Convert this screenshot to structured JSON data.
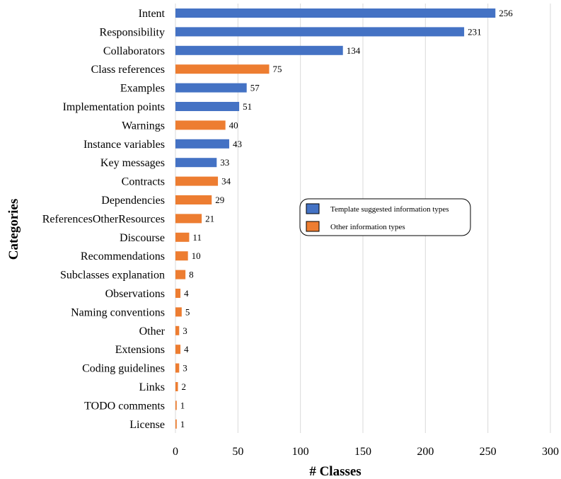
{
  "chart_data": {
    "type": "bar",
    "orientation": "horizontal",
    "xlabel": "# Classes",
    "ylabel": "Categories",
    "xlim": [
      0,
      300
    ],
    "xticks": [
      0,
      50,
      100,
      150,
      200,
      250,
      300
    ],
    "grid": "vertical",
    "legend_position": "center-right",
    "series": [
      {
        "name": "Template suggested information types",
        "color": "#4472C4"
      },
      {
        "name": "Other information types",
        "color": "#ED7D31"
      }
    ],
    "bars": [
      {
        "label": "Intent",
        "value": 256,
        "series": 0
      },
      {
        "label": "Responsibility",
        "value": 231,
        "series": 0
      },
      {
        "label": "Collaborators",
        "value": 134,
        "series": 0
      },
      {
        "label": "Class references",
        "value": 75,
        "series": 1
      },
      {
        "label": "Examples",
        "value": 57,
        "series": 0
      },
      {
        "label": "Implementation points",
        "value": 51,
        "series": 0
      },
      {
        "label": "Warnings",
        "value": 40,
        "series": 1
      },
      {
        "label": "Instance variables",
        "value": 43,
        "series": 0
      },
      {
        "label": "Key messages",
        "value": 33,
        "series": 0
      },
      {
        "label": "Contracts",
        "value": 34,
        "series": 1
      },
      {
        "label": "Dependencies",
        "value": 29,
        "series": 1
      },
      {
        "label": "ReferencesOtherResources",
        "value": 21,
        "series": 1
      },
      {
        "label": "Discourse",
        "value": 11,
        "series": 1
      },
      {
        "label": "Recommendations",
        "value": 10,
        "series": 1
      },
      {
        "label": "Subclasses explanation",
        "value": 8,
        "series": 1
      },
      {
        "label": "Observations",
        "value": 4,
        "series": 1
      },
      {
        "label": "Naming conventions",
        "value": 5,
        "series": 1
      },
      {
        "label": "Other",
        "value": 3,
        "series": 1
      },
      {
        "label": "Extensions",
        "value": 4,
        "series": 1
      },
      {
        "label": "Coding guidelines",
        "value": 3,
        "series": 1
      },
      {
        "label": "Links",
        "value": 2,
        "series": 1
      },
      {
        "label": "TODO comments",
        "value": 1,
        "series": 1
      },
      {
        "label": "License",
        "value": 1,
        "series": 1
      }
    ]
  }
}
